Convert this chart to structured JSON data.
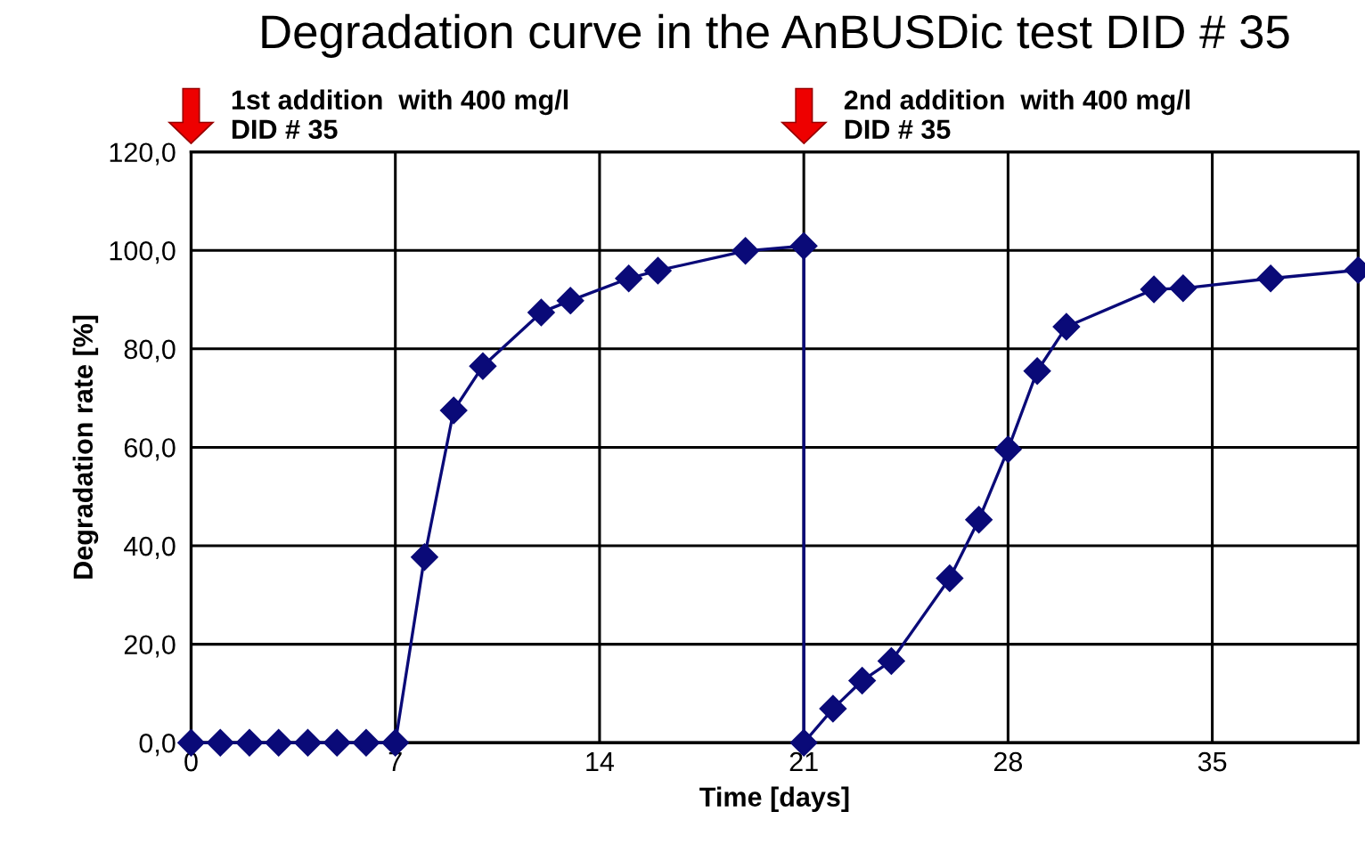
{
  "chart_data": {
    "type": "line",
    "title": "Degradation curve in the AnBUSDic test DID # 35",
    "xlabel": "Time [days]",
    "ylabel": "Degradation rate [%]",
    "series": [
      {
        "color": "#0a0a78",
        "x": [
          0,
          1,
          2,
          3,
          4,
          5,
          6,
          7,
          8,
          9,
          10,
          12,
          13,
          15,
          16,
          19,
          21,
          21,
          22,
          23,
          24,
          26,
          27,
          28,
          29,
          30,
          33,
          34,
          37,
          40
        ],
        "values": [
          0,
          0,
          0,
          0,
          0,
          0,
          0,
          0,
          37.7,
          67.5,
          76.5,
          87.4,
          89.8,
          94.3,
          95.9,
          99.9,
          100.9,
          0,
          6.9,
          12.6,
          16.6,
          33.4,
          45.3,
          59.6,
          75.5,
          84.5,
          92.1,
          92.3,
          94.3,
          96.0
        ]
      }
    ],
    "xlim": [
      0,
      40
    ],
    "xticks": [
      0,
      7,
      14,
      21,
      28,
      35
    ],
    "ylim": [
      0,
      120
    ],
    "yticks": [
      {
        "value": 0,
        "label": "0,0"
      },
      {
        "value": 20,
        "label": "20,0"
      },
      {
        "value": 40,
        "label": "40,0"
      },
      {
        "value": 60,
        "label": "60,0"
      },
      {
        "value": 80,
        "label": "80,0"
      },
      {
        "value": 100,
        "label": "100,0"
      },
      {
        "value": 120,
        "label": "120,0"
      }
    ],
    "grid": true,
    "marker": "diamond",
    "line_style": "solid",
    "legend": false,
    "annotations": [
      "1st addition  with 400 mg/l\nDID # 35",
      "2nd addition  with 400 mg/l\nDID # 35"
    ]
  }
}
